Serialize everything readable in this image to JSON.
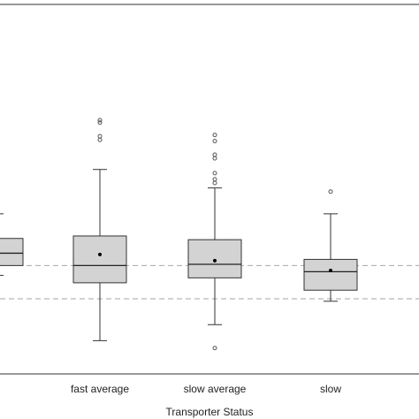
{
  "chart_data": {
    "type": "box",
    "xlabel": "Transporter Status",
    "ylabel": "",
    "title": "",
    "categories": [
      "",
      "fast average",
      "slow average",
      "slow"
    ],
    "boxes": [
      {
        "category": "",
        "whisker_low": 110,
        "q1": 118,
        "median": 128,
        "q3": 140,
        "whisker_high": 160,
        "mean": 130,
        "outliers": []
      },
      {
        "category": "fast average",
        "whisker_low": 57,
        "q1": 104,
        "median": 118,
        "q3": 142,
        "whisker_high": 196,
        "mean": 127,
        "outliers": [
          234,
          236,
          220,
          223
        ]
      },
      {
        "category": "slow average",
        "whisker_low": 70,
        "q1": 108,
        "median": 119,
        "q3": 139,
        "whisker_high": 181,
        "mean": 122,
        "outliers": [
          51,
          185,
          188,
          193,
          205,
          208,
          219,
          224
        ]
      },
      {
        "category": "slow",
        "whisker_low": 89,
        "q1": 98,
        "median": 113,
        "q3": 123,
        "whisker_high": 160,
        "mean": 114,
        "outliers": [
          178
        ]
      }
    ],
    "reference_lines": [
      118,
      91
    ],
    "ylim": [
      30,
      330
    ],
    "grid": false,
    "colors": {
      "box_fill": "#d3d3d3",
      "box_stroke": "#333333",
      "reference_line": "#a6a6a6",
      "outlier": "#555555"
    }
  }
}
